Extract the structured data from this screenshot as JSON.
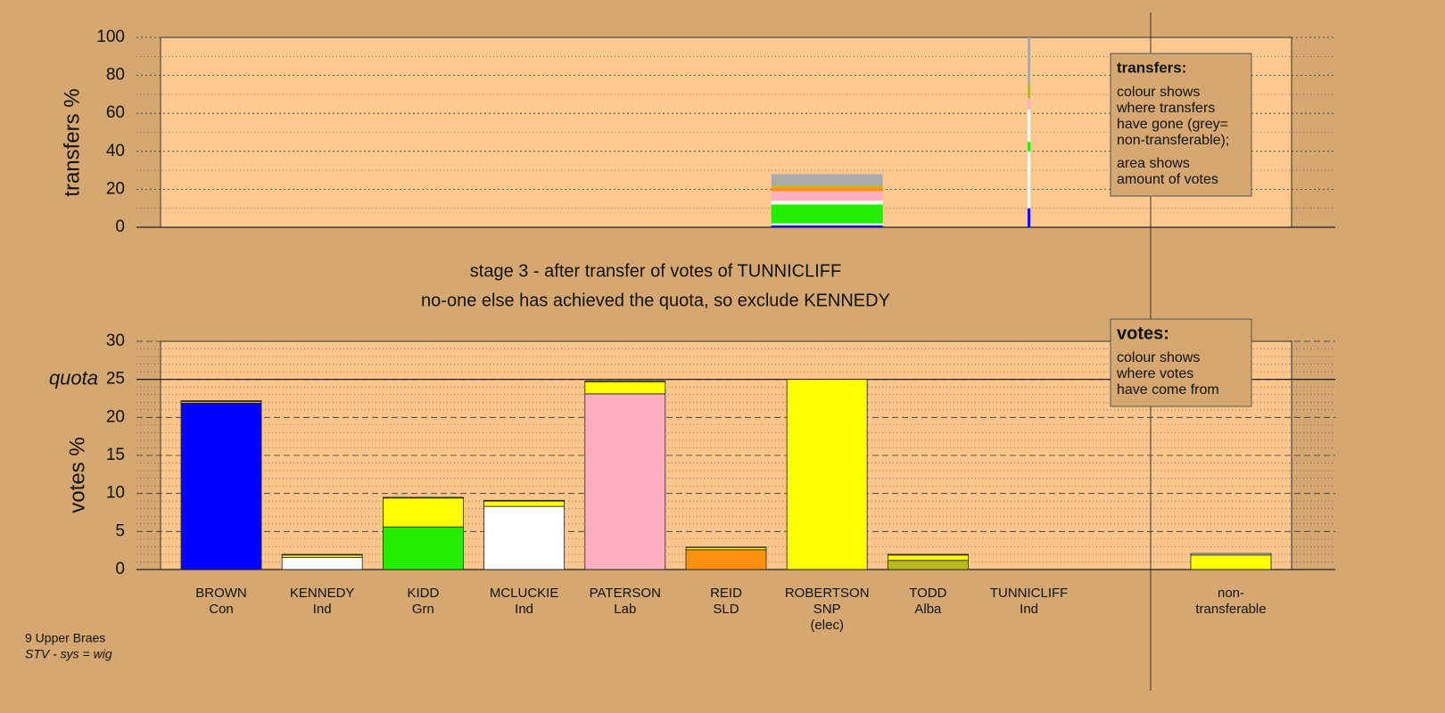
{
  "chart_data": [
    {
      "type": "bar",
      "stacked": true,
      "ylabel": "transfers %",
      "ylim": [
        0,
        100
      ],
      "yticks": [
        0,
        20,
        40,
        60,
        80,
        100
      ],
      "grid": true,
      "amounts": [
        null,
        null,
        null,
        null,
        null,
        null,
        0.35,
        null,
        0.03,
        null
      ],
      "series": [
        {
          "color": "#0000ff",
          "values": [
            null,
            null,
            null,
            null,
            null,
            null,
            1,
            null,
            10,
            null
          ]
        },
        {
          "color": "#ffffff",
          "values": [
            null,
            null,
            null,
            null,
            null,
            null,
            1,
            null,
            30,
            null
          ]
        },
        {
          "color": "#22ee00",
          "values": [
            null,
            null,
            null,
            null,
            null,
            null,
            10,
            null,
            5,
            null
          ]
        },
        {
          "color": "#ffffff",
          "values": [
            null,
            null,
            null,
            null,
            null,
            null,
            2,
            null,
            17,
            null
          ]
        },
        {
          "color": "#ffb0c0",
          "values": [
            null,
            null,
            null,
            null,
            null,
            null,
            5,
            null,
            6,
            null
          ]
        },
        {
          "color": "#ff9010",
          "values": [
            null,
            null,
            null,
            null,
            null,
            null,
            2,
            null,
            null,
            null
          ]
        },
        {
          "color": "#b8b820",
          "values": [
            null,
            null,
            null,
            null,
            null,
            null,
            1,
            null,
            7,
            null
          ]
        },
        {
          "color": "#aaaaaa",
          "values": [
            null,
            null,
            null,
            null,
            null,
            null,
            6,
            null,
            25,
            null
          ]
        }
      ],
      "note": {
        "heading": "transfers:",
        "lines": [
          "colour shows",
          "where transfers",
          "have gone (grey=",
          "non-transferable);",
          "area shows",
          "amount of votes"
        ]
      }
    },
    {
      "type": "bar",
      "stacked": true,
      "ylabel": "votes %",
      "title": [
        "stage 3 - after transfer of votes of TUNNICLIFF",
        "no-one else has achieved the quota, so exclude KENNEDY"
      ],
      "categories": [
        [
          "BROWN",
          "Con"
        ],
        [
          "KENNEDY",
          "Ind"
        ],
        [
          "KIDD",
          "Grn"
        ],
        [
          "MCLUCKIE",
          "Ind"
        ],
        [
          "PATERSON",
          "Lab"
        ],
        [
          "REID",
          "SLD"
        ],
        [
          "ROBERTSON",
          "SNP",
          "(elec)"
        ],
        [
          "TODD",
          "Alba"
        ],
        [
          "TUNNICLIFF",
          "Ind"
        ],
        [
          "non-",
          "transferable"
        ]
      ],
      "ylim": [
        0,
        30
      ],
      "yticks": [
        0,
        5,
        10,
        15,
        20,
        25,
        30
      ],
      "grid": true,
      "quota": {
        "value": 25,
        "label": "quota"
      },
      "series": [
        {
          "color": "#0000ff",
          "values": [
            21.9,
            null,
            null,
            null,
            null,
            null,
            null,
            null,
            null,
            null
          ]
        },
        {
          "color": "#ffffff",
          "values": [
            null,
            1.6,
            null,
            null,
            null,
            null,
            null,
            null,
            null,
            null
          ]
        },
        {
          "color": "#22ee00",
          "values": [
            null,
            null,
            5.6,
            null,
            null,
            null,
            null,
            null,
            null,
            null
          ]
        },
        {
          "color": "#ffffff",
          "values": [
            null,
            null,
            null,
            8.3,
            null,
            null,
            null,
            null,
            null,
            null
          ]
        },
        {
          "color": "#ffb0c0",
          "values": [
            null,
            null,
            null,
            null,
            23.1,
            null,
            null,
            null,
            null,
            null
          ]
        },
        {
          "color": "#ff9010",
          "values": [
            null,
            null,
            null,
            null,
            null,
            2.6,
            null,
            null,
            null,
            null
          ]
        },
        {
          "color": "#b8b820",
          "values": [
            null,
            null,
            null,
            null,
            null,
            null,
            null,
            1.2,
            null,
            null
          ]
        },
        {
          "color": "#ffff00",
          "values": [
            0.2,
            0.3,
            3.8,
            0.7,
            1.6,
            0.3,
            25.0,
            0.7,
            null,
            1.9
          ]
        },
        {
          "color": "#f0f0f0",
          "values": [
            0.1,
            0.1,
            0.1,
            0.1,
            0.1,
            0.05,
            null,
            0.1,
            null,
            0.2
          ]
        }
      ],
      "note": {
        "heading": "votes:",
        "lines": [
          "colour shows",
          "where votes",
          "have come from"
        ]
      }
    }
  ],
  "footer": [
    "9 Upper Braes",
    "STV - sys = wig"
  ]
}
